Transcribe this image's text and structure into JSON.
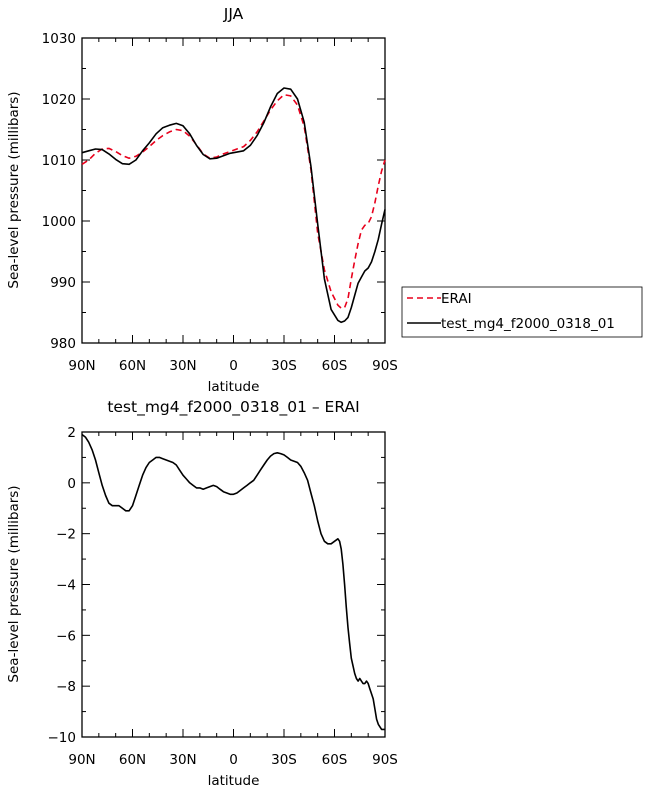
{
  "chart_data": [
    {
      "type": "line",
      "title": "JJA",
      "xlabel": "latitude",
      "ylabel": "Sea-level pressure (millibars)",
      "xlim": [
        90,
        -90
      ],
      "ylim": [
        980,
        1030
      ],
      "xticks": [
        90,
        60,
        30,
        0,
        -30,
        -60,
        -90
      ],
      "xtick_labels": [
        "90N",
        "60N",
        "30N",
        "0",
        "30S",
        "60S",
        "90S"
      ],
      "yticks": [
        980,
        990,
        1000,
        1010,
        1020,
        1030
      ],
      "ytick_labels": [
        "980",
        "990",
        "1000",
        "1010",
        "1020",
        "1030"
      ],
      "legend_position": "right",
      "series": [
        {
          "name": "ERAI",
          "color": "#e8001c",
          "dash": "dashed",
          "x": [
            90,
            86,
            82,
            78,
            74,
            70,
            66,
            62,
            58,
            54,
            50,
            46,
            42,
            38,
            34,
            30,
            26,
            22,
            18,
            14,
            10,
            6,
            2,
            -2,
            -6,
            -10,
            -14,
            -18,
            -22,
            -26,
            -30,
            -34,
            -38,
            -42,
            -46,
            -50,
            -54,
            -58,
            -62,
            -64,
            -66,
            -68,
            -70,
            -72,
            -74,
            -76,
            -78,
            -80,
            -82,
            -84,
            -86,
            -88,
            -90
          ],
          "y": [
            1009.3,
            1010.0,
            1011.1,
            1011.8,
            1011.9,
            1011.4,
            1010.7,
            1010.3,
            1010.6,
            1011.3,
            1012.2,
            1013.2,
            1014.0,
            1014.6,
            1015.0,
            1014.8,
            1013.9,
            1012.5,
            1011.0,
            1010.3,
            1010.5,
            1011.0,
            1011.4,
            1011.8,
            1012.2,
            1013.2,
            1014.6,
            1016.4,
            1018.2,
            1019.7,
            1020.7,
            1020.5,
            1019.0,
            1015.5,
            1008.5,
            998.0,
            992.0,
            988.4,
            986.2,
            985.7,
            985.8,
            987.3,
            990.5,
            993.5,
            996.3,
            998.5,
            999.3,
            999.6,
            1000.7,
            1003.0,
            1005.8,
            1008.2,
            1010.0
          ]
        },
        {
          "name": "test_mg4_f2000_0318_01",
          "color": "#000000",
          "dash": "solid",
          "x": [
            90,
            86,
            82,
            78,
            74,
            70,
            66,
            62,
            58,
            54,
            50,
            46,
            42,
            38,
            34,
            30,
            26,
            22,
            18,
            14,
            10,
            6,
            2,
            -2,
            -6,
            -10,
            -14,
            -18,
            -22,
            -26,
            -30,
            -34,
            -38,
            -42,
            -46,
            -50,
            -54,
            -58,
            -62,
            -64,
            -66,
            -68,
            -70,
            -72,
            -74,
            -76,
            -78,
            -80,
            -82,
            -84,
            -86,
            -88,
            -90
          ],
          "y": [
            1011.2,
            1011.5,
            1011.8,
            1011.7,
            1011.0,
            1010.1,
            1009.4,
            1009.3,
            1010.0,
            1011.5,
            1012.8,
            1014.3,
            1015.3,
            1015.7,
            1016.0,
            1015.6,
            1014.3,
            1012.4,
            1010.9,
            1010.2,
            1010.3,
            1010.7,
            1011.1,
            1011.3,
            1011.5,
            1012.4,
            1014.0,
            1016.1,
            1018.7,
            1020.9,
            1021.8,
            1021.6,
            1020.0,
            1016.2,
            1009.0,
            999.5,
            990.5,
            985.5,
            983.7,
            983.4,
            983.6,
            984.2,
            985.8,
            987.8,
            989.8,
            990.8,
            991.8,
            992.3,
            993.3,
            995.0,
            997.0,
            999.5,
            1001.9
          ]
        }
      ]
    },
    {
      "type": "line",
      "title": "test_mg4_f2000_0318_01 – ERAI",
      "xlabel": "latitude",
      "ylabel": "Sea-level pressure (millibars)",
      "xlim": [
        90,
        -90
      ],
      "ylim": [
        -10,
        2
      ],
      "xticks": [
        90,
        60,
        30,
        0,
        -30,
        -60,
        -90
      ],
      "xtick_labels": [
        "90N",
        "60N",
        "30N",
        "0",
        "30S",
        "60S",
        "90S"
      ],
      "yticks": [
        -10,
        -8,
        -6,
        -4,
        -2,
        0,
        2
      ],
      "ytick_labels": [
        "−10",
        "−8",
        "−6",
        "−4",
        "−2",
        "0",
        "2"
      ],
      "series": [
        {
          "color": "#000000",
          "dash": "solid",
          "x": [
            90,
            88,
            86,
            84,
            82,
            80,
            78,
            76,
            74,
            72,
            70,
            68,
            66,
            64,
            62,
            60,
            58,
            56,
            54,
            52,
            50,
            48,
            46,
            44,
            42,
            40,
            38,
            36,
            34,
            32,
            30,
            28,
            26,
            24,
            22,
            20,
            18,
            16,
            14,
            12,
            10,
            8,
            6,
            4,
            2,
            0,
            -2,
            -4,
            -6,
            -8,
            -10,
            -12,
            -14,
            -16,
            -18,
            -20,
            -22,
            -24,
            -26,
            -28,
            -30,
            -32,
            -34,
            -36,
            -38,
            -40,
            -42,
            -44,
            -46,
            -48,
            -50,
            -52,
            -54,
            -56,
            -58,
            -60,
            -62,
            -63,
            -64,
            -65,
            -66,
            -67,
            -68,
            -69,
            -70,
            -71,
            -72,
            -73,
            -74,
            -75,
            -76,
            -77,
            -78,
            -79,
            -80,
            -81,
            -82,
            -83,
            -84,
            -85,
            -86,
            -87,
            -88,
            -89,
            -90
          ],
          "y": [
            1.9,
            1.8,
            1.6,
            1.3,
            0.9,
            0.4,
            -0.1,
            -0.5,
            -0.8,
            -0.9,
            -0.9,
            -0.9,
            -1.0,
            -1.1,
            -1.1,
            -0.9,
            -0.5,
            -0.1,
            0.3,
            0.6,
            0.8,
            0.9,
            1.0,
            1.0,
            0.95,
            0.9,
            0.85,
            0.8,
            0.7,
            0.5,
            0.3,
            0.15,
            0.0,
            -0.1,
            -0.2,
            -0.2,
            -0.25,
            -0.2,
            -0.15,
            -0.1,
            -0.15,
            -0.25,
            -0.35,
            -0.4,
            -0.45,
            -0.45,
            -0.4,
            -0.3,
            -0.2,
            -0.1,
            0.0,
            0.1,
            0.3,
            0.5,
            0.7,
            0.9,
            1.05,
            1.15,
            1.18,
            1.15,
            1.1,
            1.0,
            0.9,
            0.85,
            0.8,
            0.65,
            0.4,
            0.1,
            -0.4,
            -0.9,
            -1.5,
            -2.0,
            -2.3,
            -2.4,
            -2.4,
            -2.3,
            -2.2,
            -2.3,
            -2.6,
            -3.2,
            -4.0,
            -4.9,
            -5.7,
            -6.3,
            -6.9,
            -7.2,
            -7.5,
            -7.7,
            -7.8,
            -7.7,
            -7.8,
            -7.9,
            -7.9,
            -7.8,
            -7.9,
            -8.1,
            -8.3,
            -8.5,
            -8.9,
            -9.3,
            -9.5,
            -9.6,
            -9.7,
            -9.7,
            -9.7
          ]
        }
      ]
    }
  ]
}
